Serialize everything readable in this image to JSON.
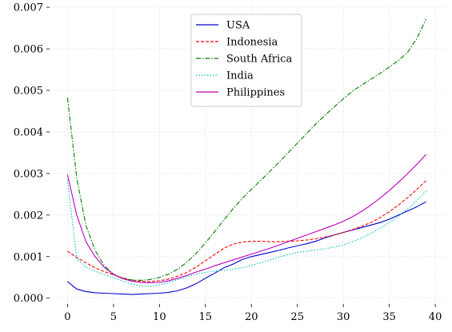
{
  "chart_data": {
    "type": "line",
    "title": "",
    "xlabel": "",
    "ylabel": "",
    "xlim": [
      -1.95,
      40.95
    ],
    "ylim": [
      -0.00014,
      0.00704
    ],
    "grid": true,
    "legend_position": "upper-center",
    "x_ticks": [
      0,
      5,
      10,
      15,
      20,
      25,
      30,
      35,
      40
    ],
    "x_tick_labels": [
      "0",
      "5",
      "10",
      "15",
      "20",
      "25",
      "30",
      "35",
      "40"
    ],
    "y_ticks": [
      0.0,
      0.001,
      0.002,
      0.003,
      0.004,
      0.005,
      0.006,
      0.007
    ],
    "y_tick_labels": [
      "0.000",
      "0.001",
      "0.002",
      "0.003",
      "0.004",
      "0.005",
      "0.006",
      "0.007"
    ],
    "x": [
      0,
      1,
      2,
      3,
      4,
      5,
      6,
      7,
      8,
      9,
      10,
      11,
      12,
      13,
      14,
      15,
      16,
      17,
      18,
      19,
      20,
      21,
      22,
      23,
      24,
      25,
      26,
      27,
      28,
      29,
      30,
      31,
      32,
      33,
      34,
      35,
      36,
      37,
      38,
      39
    ],
    "series": [
      {
        "name": "USA",
        "color": "#0000cc",
        "dash": "solid",
        "values": [
          0.0004,
          0.00022,
          0.00016,
          0.00013,
          0.00012,
          0.00011,
          0.0001,
          9e-05,
          0.0001,
          0.00011,
          0.00012,
          0.00014,
          0.00018,
          0.00025,
          0.00035,
          0.00048,
          0.0006,
          0.00073,
          0.00082,
          0.00093,
          0.001,
          0.00105,
          0.0011,
          0.00115,
          0.00121,
          0.00126,
          0.00131,
          0.00137,
          0.00145,
          0.00152,
          0.00158,
          0.00164,
          0.0017,
          0.00176,
          0.00182,
          0.0019,
          0.002,
          0.0021,
          0.0022,
          0.00232
        ]
      },
      {
        "name": "Indonesia",
        "color": "#ff0000",
        "dash": "dashed",
        "values": [
          0.00113,
          0.00098,
          0.00085,
          0.00073,
          0.00064,
          0.00056,
          0.00049,
          0.00043,
          0.0004,
          0.0004,
          0.00042,
          0.00046,
          0.00053,
          0.00062,
          0.00075,
          0.0009,
          0.00105,
          0.0012,
          0.0013,
          0.00135,
          0.00137,
          0.00137,
          0.00136,
          0.00136,
          0.00137,
          0.00138,
          0.0014,
          0.00143,
          0.00147,
          0.00152,
          0.00158,
          0.00165,
          0.00173,
          0.00182,
          0.00194,
          0.00208,
          0.00224,
          0.00242,
          0.00262,
          0.00283
        ]
      },
      {
        "name": "South Africa",
        "color": "#008000",
        "dash": "dashdot",
        "values": [
          0.00482,
          0.0029,
          0.00175,
          0.00115,
          0.00078,
          0.00058,
          0.00048,
          0.00044,
          0.00043,
          0.00045,
          0.0005,
          0.00058,
          0.0007,
          0.00087,
          0.00108,
          0.00133,
          0.0016,
          0.00188,
          0.00215,
          0.0024,
          0.00262,
          0.00283,
          0.00305,
          0.00327,
          0.0035,
          0.00373,
          0.00396,
          0.00419,
          0.0044,
          0.0046,
          0.0048,
          0.00498,
          0.00513,
          0.00527,
          0.00541,
          0.00556,
          0.00572,
          0.00592,
          0.00625,
          0.00672
        ]
      },
      {
        "name": "India",
        "color": "#00bfbf",
        "dash": "dotted",
        "values": [
          0.00285,
          0.00095,
          0.00075,
          0.00065,
          0.00057,
          0.00049,
          0.00041,
          0.00034,
          0.00029,
          0.00029,
          0.00032,
          0.00038,
          0.00045,
          0.00052,
          0.00058,
          0.00062,
          0.00065,
          0.00067,
          0.0007,
          0.00073,
          0.00079,
          0.00085,
          0.00092,
          0.00099,
          0.00105,
          0.0011,
          0.00113,
          0.00116,
          0.00119,
          0.00123,
          0.00128,
          0.00136,
          0.00145,
          0.00156,
          0.00168,
          0.00182,
          0.00197,
          0.00215,
          0.00235,
          0.00258
        ]
      },
      {
        "name": "Philippines",
        "color": "#bf00bf",
        "dash": "solid",
        "values": [
          0.00297,
          0.002,
          0.00136,
          0.001,
          0.00074,
          0.00057,
          0.00047,
          0.00041,
          0.00038,
          0.00037,
          0.00038,
          0.00042,
          0.00048,
          0.00055,
          0.00063,
          0.0007,
          0.00078,
          0.00085,
          0.00092,
          0.00099,
          0.00106,
          0.00113,
          0.0012,
          0.00128,
          0.00136,
          0.00144,
          0.00152,
          0.0016,
          0.00168,
          0.00176,
          0.00185,
          0.00196,
          0.00209,
          0.00224,
          0.00241,
          0.00259,
          0.00279,
          0.003,
          0.00322,
          0.00346
        ]
      }
    ]
  }
}
